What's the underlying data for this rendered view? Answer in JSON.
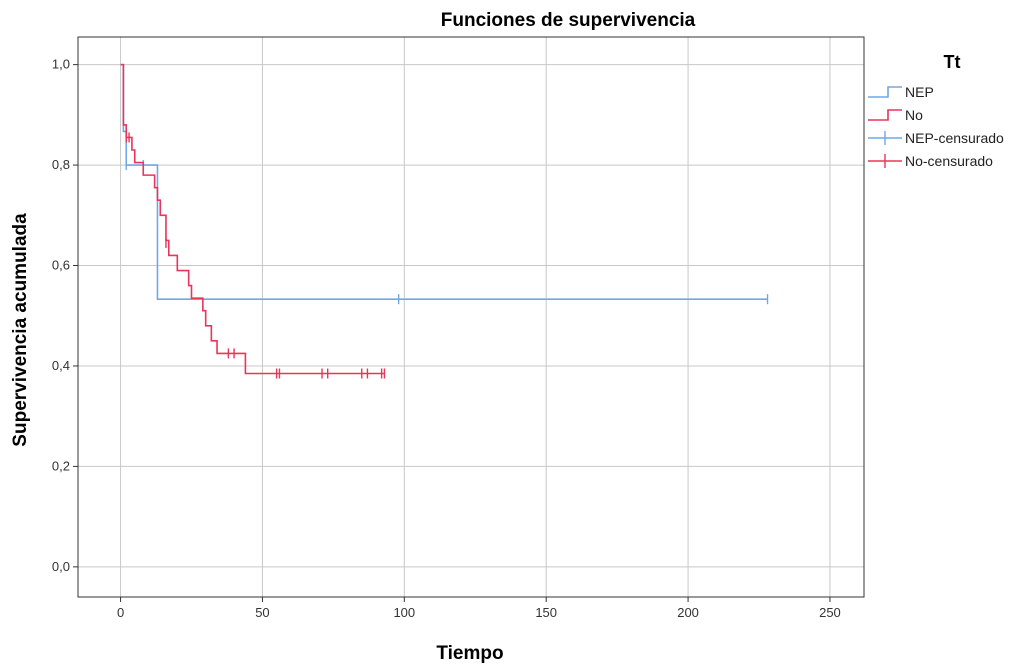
{
  "chart_data": {
    "type": "line",
    "title": "Funciones de supervivencia",
    "xlabel": "Tiempo",
    "ylabel": "Supervivencia acumulada",
    "xlim": [
      -15,
      262
    ],
    "ylim": [
      -0.06,
      1.055
    ],
    "x_ticks": [
      0,
      50,
      100,
      150,
      200,
      250
    ],
    "x_tick_labels": [
      "0",
      "50",
      "100",
      "150",
      "200",
      "250"
    ],
    "y_ticks": [
      0,
      0.2,
      0.4,
      0.6,
      0.8,
      1.0
    ],
    "y_tick_labels": [
      "0,0",
      "0,2",
      "0,4",
      "0,6",
      "0,8",
      "1,0"
    ],
    "grid": true,
    "legend": {
      "title": "Tt",
      "position": "right",
      "entries": [
        {
          "label": "NEP",
          "kind": "step",
          "color": "#6fa8e8"
        },
        {
          "label": "No",
          "kind": "step",
          "color": "#e8355a"
        },
        {
          "label": "NEP-censurado",
          "kind": "censor",
          "color": "#6fa8e8"
        },
        {
          "label": "No-censurado",
          "kind": "censor",
          "color": "#e8355a"
        }
      ]
    },
    "series": [
      {
        "name": "NEP",
        "color": "#6fa8e8",
        "steps": [
          [
            0,
            1.0
          ],
          [
            1,
            0.867
          ],
          [
            2,
            0.8
          ],
          [
            13,
            0.533
          ],
          [
            228,
            0.533
          ]
        ],
        "censored": [
          [
            2,
            0.8
          ],
          [
            8,
            0.8
          ],
          [
            98,
            0.533
          ],
          [
            228,
            0.533
          ]
        ]
      },
      {
        "name": "No",
        "color": "#e8355a",
        "steps": [
          [
            0,
            1.0
          ],
          [
            1,
            0.88
          ],
          [
            2,
            0.855
          ],
          [
            4,
            0.83
          ],
          [
            5,
            0.805
          ],
          [
            8,
            0.78
          ],
          [
            12,
            0.755
          ],
          [
            13,
            0.73
          ],
          [
            14,
            0.7
          ],
          [
            16,
            0.65
          ],
          [
            17,
            0.62
          ],
          [
            20,
            0.59
          ],
          [
            24,
            0.56
          ],
          [
            25,
            0.535
          ],
          [
            29,
            0.51
          ],
          [
            30,
            0.48
          ],
          [
            32,
            0.45
          ],
          [
            34,
            0.425
          ],
          [
            44,
            0.385
          ],
          [
            93,
            0.385
          ]
        ],
        "censored": [
          [
            2,
            0.855
          ],
          [
            3,
            0.855
          ],
          [
            16,
            0.645
          ],
          [
            38,
            0.425
          ],
          [
            40,
            0.425
          ],
          [
            55,
            0.385
          ],
          [
            56,
            0.385
          ],
          [
            71,
            0.385
          ],
          [
            73,
            0.385
          ],
          [
            85,
            0.385
          ],
          [
            87,
            0.385
          ],
          [
            92,
            0.385
          ],
          [
            93,
            0.385
          ]
        ]
      }
    ]
  }
}
